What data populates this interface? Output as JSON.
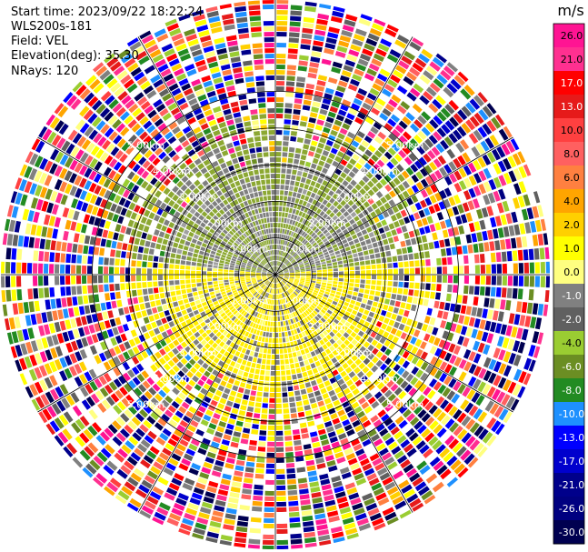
{
  "header": {
    "start_time": "Start time: 2023/09/22 18:22:24",
    "instrument": "WLS200s-181",
    "field": "Field: VEL",
    "elevation": "Elevation(deg): 35.30",
    "nrays": "NRays: 120"
  },
  "chart_data": {
    "type": "ppi",
    "units": "m/s",
    "nrays": 120,
    "range_rings_km": [
      1.0,
      2.0,
      3.0,
      4.0,
      5.0
    ],
    "ring_labels": [
      "1.00km",
      "2.00km",
      "3.00km",
      "4.00km",
      "5.00km"
    ],
    "colorbar": {
      "ticks": [
        "26.0",
        "21.0",
        "17.0",
        "13.0",
        "10.0",
        "8.0",
        "6.0",
        "4.0",
        "2.0",
        "1.0",
        "0.0",
        "-1.0",
        "-2.0",
        "-4.0",
        "-6.0",
        "-8.0",
        "-10.0",
        "-13.0",
        "-17.0",
        "-21.0",
        "-26.0",
        "-30.0"
      ],
      "colors_top_to_bottom": [
        "#ff1493",
        "#ff3090",
        "#ff0000",
        "#e61a1a",
        "#ff4040",
        "#ff6060",
        "#ff8040",
        "#ffa500",
        "#ffd000",
        "#ffff00",
        "#ffff80",
        "#808080",
        "#606060",
        "#9acd32",
        "#6b8e23",
        "#228b22",
        "#1e90ff",
        "#0000ff",
        "#0000cd",
        "#00008b",
        "#000080",
        "#000050"
      ]
    },
    "inner_pattern": {
      "north_half": "mixed gray (-1 to 0 m/s) and olive green (-2 to -4 m/s)",
      "south_half": "mostly yellow (1 to 2 m/s) with gray patches",
      "outer_range": "noise, all colors"
    }
  }
}
